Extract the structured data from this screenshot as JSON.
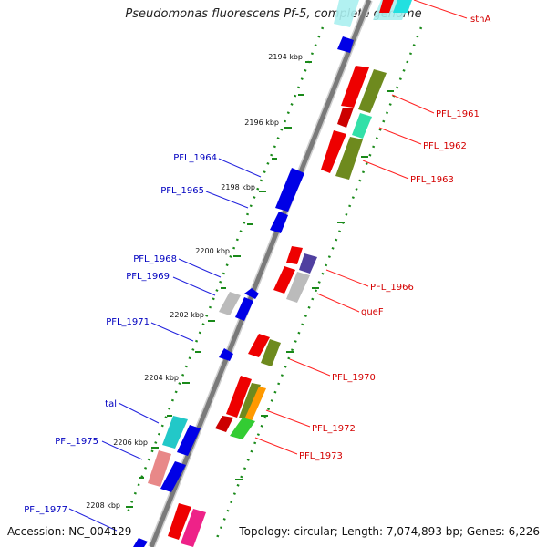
{
  "title": "Pseudomonas fluorescens Pf-5, complete genome",
  "accession_label": "Accession: NC_004129",
  "summary_label": "Topology: circular; Length: 7,074,893 bp; Genes: 6,226",
  "colors": {
    "backbone": "#8a8a8a",
    "tick_minor": "#1a8a1a",
    "tick_major": "#1a8a1a",
    "forward_label": "#d40000",
    "reverse_label": "#0000c0",
    "gene_red": "#ee0000",
    "gene_olive": "#6e8a1e",
    "gene_aqua": "#33e0a8",
    "gene_blue": "#0000e6",
    "gene_gray": "#b8b8b8",
    "gene_purple": "#5040a0",
    "gene_cyan": "#22c8c8",
    "gene_salmon": "#e88888",
    "gene_orange": "#ff9900",
    "gene_green": "#33cc33",
    "gene_magenta": "#ee2288",
    "gene_lightcyan": "#aaf0f0"
  },
  "ticks": [
    {
      "label": "2194 kbp"
    },
    {
      "label": "2196 kbp"
    },
    {
      "label": "2198 kbp"
    },
    {
      "label": "2200 kbp"
    },
    {
      "label": "2202 kbp"
    },
    {
      "label": "2204 kbp"
    },
    {
      "label": "2206 kbp"
    },
    {
      "label": "2208 kbp"
    }
  ],
  "forward_labels": [
    {
      "text": "sthA"
    },
    {
      "text": "PFL_1961"
    },
    {
      "text": "PFL_1962"
    },
    {
      "text": "PFL_1963"
    },
    {
      "text": "PFL_1966"
    },
    {
      "text": "queF"
    },
    {
      "text": "PFL_1970"
    },
    {
      "text": "PFL_1972"
    },
    {
      "text": "PFL_1973"
    }
  ],
  "reverse_labels": [
    {
      "text": "PFL_1964"
    },
    {
      "text": "PFL_1965"
    },
    {
      "text": "PFL_1968"
    },
    {
      "text": "PFL_1969"
    },
    {
      "text": "PFL_1971"
    },
    {
      "text": "tal"
    },
    {
      "text": "PFL_1975"
    },
    {
      "text": "PFL_1977"
    }
  ]
}
